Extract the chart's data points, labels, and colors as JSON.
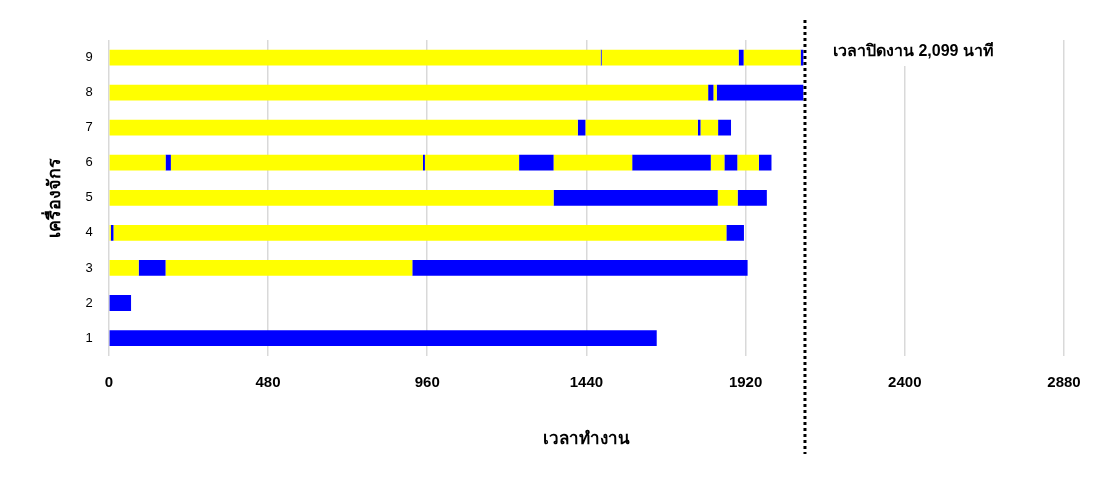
{
  "chart_data": {
    "type": "bar",
    "orientation": "horizontal",
    "stacked": true,
    "xlabel": "เวลาทำงาน",
    "ylabel": "เครื่องจักร",
    "categories": [
      "9",
      "8",
      "7",
      "6",
      "5",
      "4",
      "3",
      "2",
      "1"
    ],
    "series": [
      {
        "color": "#ffff00",
        "values": [
          1483,
          1807,
          1414,
          171,
          1341,
          6,
          90,
          null,
          null
        ]
      },
      {
        "color": "#0000ff",
        "values": [
          3,
          16,
          23,
          16,
          495,
          8,
          81,
          67,
          1652
        ]
      },
      {
        "color": "#ffff00",
        "values": [
          413,
          10,
          339,
          760,
          60,
          1848,
          744,
          null,
          null
        ]
      },
      {
        "color": "#0000ff",
        "values": [
          15,
          261,
          8,
          6,
          88,
          53,
          1011,
          null,
          null
        ]
      },
      {
        "color": "#ffff00",
        "values": [
          172,
          null,
          53,
          284,
          null,
          null,
          null,
          null,
          null
        ]
      },
      {
        "color": "#0000ff",
        "values": [
          8,
          null,
          39,
          104,
          null,
          null,
          null,
          null,
          null
        ]
      },
      {
        "color": "#ffff00",
        "values": [
          null,
          null,
          null,
          237,
          null,
          null,
          null,
          null,
          null
        ]
      },
      {
        "color": "#0000ff",
        "values": [
          null,
          null,
          null,
          237,
          null,
          null,
          null,
          null,
          null
        ]
      },
      {
        "color": "#ffff00",
        "values": [
          null,
          null,
          null,
          41,
          null,
          null,
          null,
          null,
          null
        ]
      },
      {
        "color": "#0000ff",
        "values": [
          null,
          null,
          null,
          39,
          null,
          null,
          null,
          null,
          null
        ]
      },
      {
        "color": "#ffff00",
        "values": [
          null,
          null,
          null,
          65,
          null,
          null,
          null,
          null,
          null
        ]
      },
      {
        "color": "#0000ff",
        "values": [
          null,
          null,
          null,
          38,
          null,
          null,
          null,
          null,
          null
        ]
      }
    ],
    "xlim": [
      0,
      2880
    ],
    "xticks": [
      0,
      480,
      960,
      1440,
      1920,
      2400,
      2880
    ],
    "grid": "x",
    "legend": false,
    "ref_lines": [
      {
        "axis": "x",
        "value": 2099,
        "label": "เวลาปิดงาน 2,099 นาที",
        "color": "#000000",
        "line_style": "dotted"
      }
    ]
  }
}
